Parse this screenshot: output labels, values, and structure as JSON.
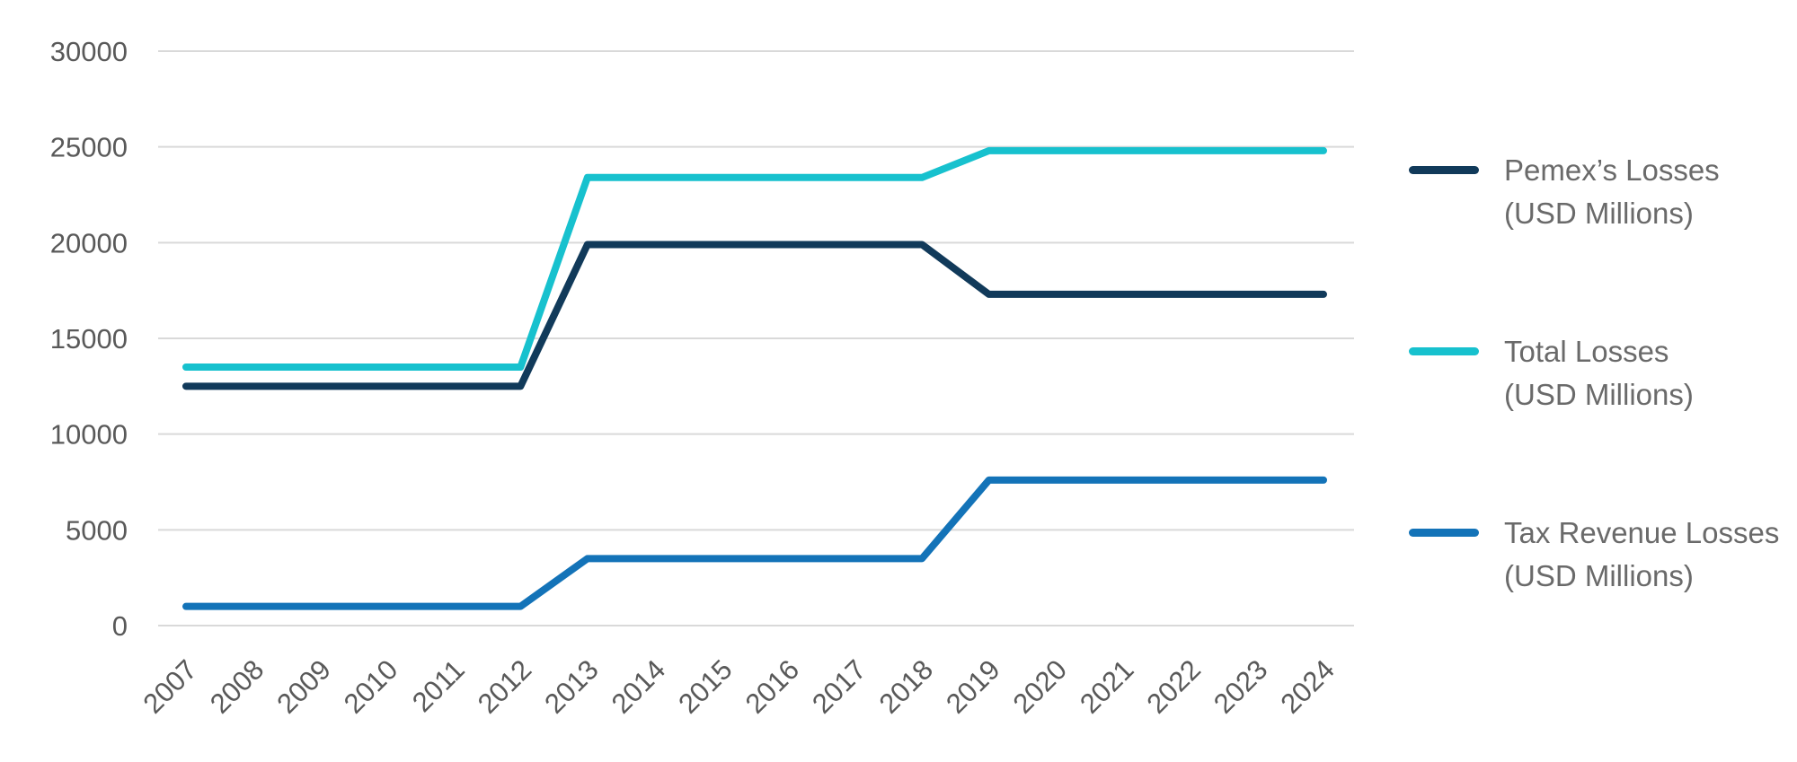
{
  "chart_data": {
    "type": "line",
    "x": [
      2007,
      2008,
      2009,
      2010,
      2011,
      2012,
      2013,
      2014,
      2015,
      2016,
      2017,
      2018,
      2019,
      2020,
      2021,
      2022,
      2023,
      2024
    ],
    "series": [
      {
        "name": "Pemex’s Losses (USD Millions)",
        "color": "#113a5a",
        "values": [
          12500,
          12500,
          12500,
          12500,
          12500,
          12500,
          19900,
          19900,
          19900,
          19900,
          19900,
          19900,
          17300,
          17300,
          17300,
          17300,
          17300,
          17300
        ]
      },
      {
        "name": "Total Losses (USD Millions)",
        "color": "#17c1ce",
        "values": [
          13500,
          13500,
          13500,
          13500,
          13500,
          13500,
          23400,
          23400,
          23400,
          23400,
          23400,
          23400,
          24800,
          24800,
          24800,
          24800,
          24800,
          24800
        ]
      },
      {
        "name": "Tax Revenue Losses (USD Millions)",
        "color": "#1373b8",
        "values": [
          1000,
          1000,
          1000,
          1000,
          1000,
          1000,
          3500,
          3500,
          3500,
          3500,
          3500,
          3500,
          7600,
          7600,
          7600,
          7600,
          7600,
          7600
        ]
      }
    ],
    "title": "",
    "xlabel": "",
    "ylabel": "",
    "ylim": [
      0,
      30000
    ],
    "yticks": [
      0,
      5000,
      10000,
      15000,
      20000,
      25000,
      30000
    ],
    "grid": true,
    "legend_position": "right"
  },
  "legend": {
    "items": [
      {
        "line1": "Pemex’s Losses",
        "line2": "(USD Millions)",
        "color": "#113a5a"
      },
      {
        "line1": "Total Losses",
        "line2": "(USD Millions)",
        "color": "#17c1ce"
      },
      {
        "line1": "Tax Revenue Losses",
        "line2": "(USD Millions)",
        "color": "#1373b8"
      }
    ]
  },
  "colors": {
    "background": "#ffffff",
    "gridline": "#d9d9d9",
    "tick_text": "#595959",
    "legend_text": "#6a6a6a"
  }
}
